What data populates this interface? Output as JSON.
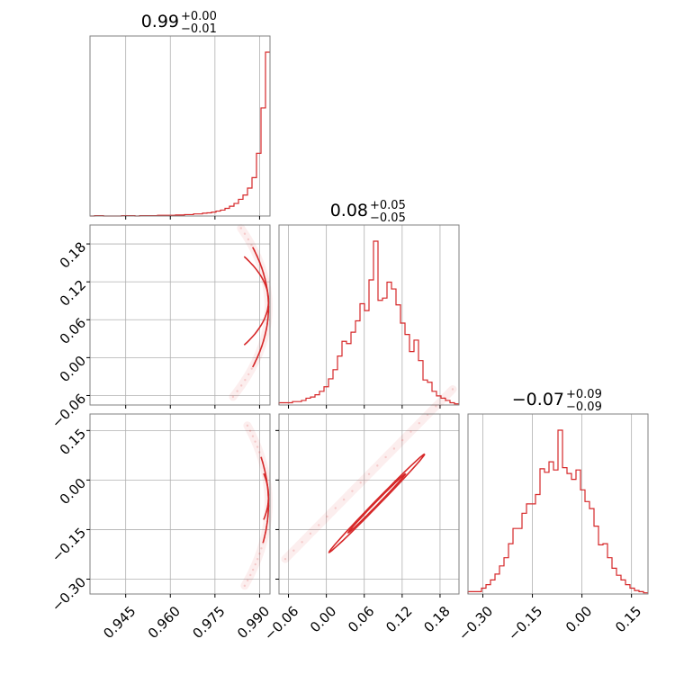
{
  "chart_data": {
    "type": "corner",
    "color": "#d62728",
    "parameters": [
      {
        "id": "p0",
        "range": [
          0.933,
          0.9935
        ],
        "ticks": [
          0.945,
          0.96,
          0.975,
          0.99
        ],
        "tick_labels": [
          "0.945",
          "0.960",
          "0.975",
          "0.990"
        ],
        "title": {
          "median": "0.99",
          "upper": "+0.00",
          "lower": "−0.01"
        }
      },
      {
        "id": "p1",
        "range": [
          -0.075,
          0.21
        ],
        "ticks": [
          -0.06,
          0.0,
          0.06,
          0.12,
          0.18
        ],
        "tick_labels": [
          "−0.06",
          "0.00",
          "0.06",
          "0.12",
          "0.18"
        ],
        "title": {
          "median": "0.08",
          "upper": "+0.05",
          "lower": "−0.05"
        }
      },
      {
        "id": "p2",
        "range": [
          -0.345,
          0.2
        ],
        "ticks": [
          -0.3,
          -0.15,
          0.0,
          0.15
        ],
        "tick_labels": [
          "−0.30",
          "−0.15",
          "0.00",
          "0.15"
        ],
        "title": {
          "median": "−0.07",
          "upper": "+0.09",
          "lower": "−0.09"
        }
      }
    ],
    "histograms": [
      {
        "param": "p0",
        "bins": 40,
        "counts": [
          0,
          1,
          1,
          0,
          0,
          0,
          0,
          1,
          1,
          1,
          0,
          1,
          1,
          1,
          1,
          2,
          2,
          2,
          2,
          3,
          3,
          4,
          4,
          6,
          6,
          8,
          9,
          11,
          14,
          17,
          22,
          28,
          36,
          48,
          60,
          80,
          110,
          180,
          310,
          470
        ]
      },
      {
        "param": "p1",
        "bins": 40,
        "counts": [
          2,
          2,
          2,
          3,
          3,
          4,
          6,
          7,
          9,
          12,
          16,
          23,
          31,
          43,
          56,
          54,
          64,
          74,
          89,
          83,
          110,
          144,
          92,
          94,
          108,
          102,
          88,
          72,
          62,
          47,
          57,
          39,
          22,
          20,
          12,
          8,
          6,
          4,
          2,
          1
        ]
      },
      {
        "param": "p2",
        "bins": 40,
        "counts": [
          2,
          2,
          2,
          5,
          8,
          12,
          17,
          24,
          31,
          43,
          56,
          56,
          69,
          77,
          77,
          85,
          107,
          104,
          113,
          106,
          140,
          108,
          103,
          98,
          106,
          89,
          79,
          73,
          58,
          42,
          43,
          31,
          22,
          16,
          12,
          8,
          5,
          3,
          2,
          1
        ]
      }
    ],
    "pairs": [
      {
        "x": "p0",
        "y": "p1",
        "relation": "y = 0.08 ± sqrt(1.69·(0.993 − x)); inner contours hug x = 0.99"
      },
      {
        "x": "p0",
        "y": "p2",
        "relation": "y = −0.07 ± sqrt(7.8·(0.993 − x))"
      },
      {
        "x": "p1",
        "y": "p2",
        "relation": "y ≈ −0.21 + 1.94·(x + 0.05), narrow linear ridge"
      }
    ],
    "grid": true
  }
}
